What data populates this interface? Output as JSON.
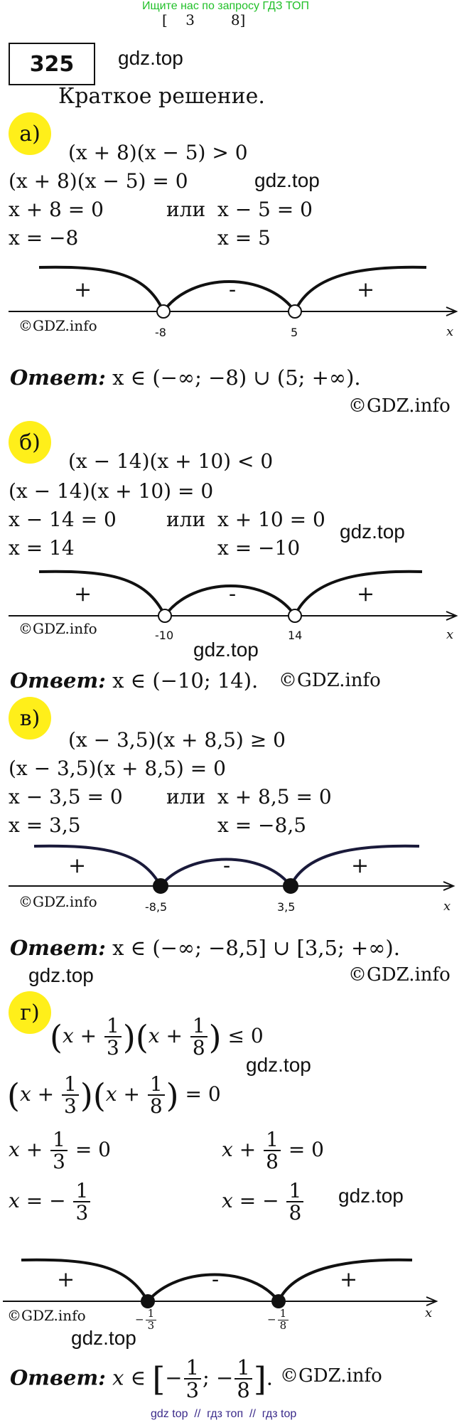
{
  "header": {
    "top_banner": "Ищите нас по запросу ГДЗ ТОП",
    "top_cut": "[    3        8]"
  },
  "problem": {
    "number": "325",
    "site": "gdz.top",
    "subtitle": "Краткое решение."
  },
  "watermarks": {
    "gdz_top": "gdz.top",
    "gdz_info": "©GDZ.info"
  },
  "a": {
    "label": "а)",
    "ineq": "(x + 8)(x − 5) > 0",
    "eq": "(x + 8)(x − 5) = 0",
    "r1": "x + 8 = 0",
    "or": "или",
    "r2": "x − 5 = 0",
    "s1": "x = −8",
    "s2": "x = 5",
    "line": {
      "left": "-8",
      "right": "5",
      "var": "x",
      "signs": [
        "+",
        "-",
        "+"
      ],
      "points": "open"
    },
    "answer_label": "Ответ:",
    "answer": "x ∈ (−∞; −8) ∪ (5; +∞)."
  },
  "b": {
    "label": "б)",
    "ineq": "(x − 14)(x + 10) < 0",
    "eq": "(x − 14)(x + 10) = 0",
    "r1": "x − 14 = 0",
    "or": "или",
    "r2": "x + 10 = 0",
    "s1": "x = 14",
    "s2": "x = −10",
    "line": {
      "left": "-10",
      "right": "14",
      "var": "x",
      "signs": [
        "+",
        "-",
        "+"
      ],
      "points": "open"
    },
    "answer_label": "Ответ:",
    "answer": "x ∈ (−10; 14)."
  },
  "v": {
    "label": "в)",
    "ineq": "(x − 3,5)(x + 8,5) ≥ 0",
    "eq": "(x − 3,5)(x + 8,5) = 0",
    "r1": "x − 3,5 = 0",
    "or": "или",
    "r2": "x + 8,5 = 0",
    "s1": "x = 3,5",
    "s2": "x = −8,5",
    "line": {
      "left": "-8,5",
      "right": "3,5",
      "var": "x",
      "signs": [
        "+",
        "-",
        "+"
      ],
      "points": "filled"
    },
    "answer_label": "Ответ:",
    "answer": "x ∈ (−∞; −8,5] ∪ [3,5; +∞)."
  },
  "g": {
    "label": "г)",
    "num": "1",
    "den3": "3",
    "den8": "8",
    "x": "x",
    "plus": "+",
    "minus": "−",
    "le": "≤ 0",
    "eq0": "= 0",
    "line": {
      "var": "x",
      "signs": [
        "+",
        "-",
        "+"
      ],
      "points": "filled"
    },
    "answer_label": "Ответ:"
  },
  "footer": {
    "links": "gdz top  //  гдз топ  //  гдз top"
  }
}
